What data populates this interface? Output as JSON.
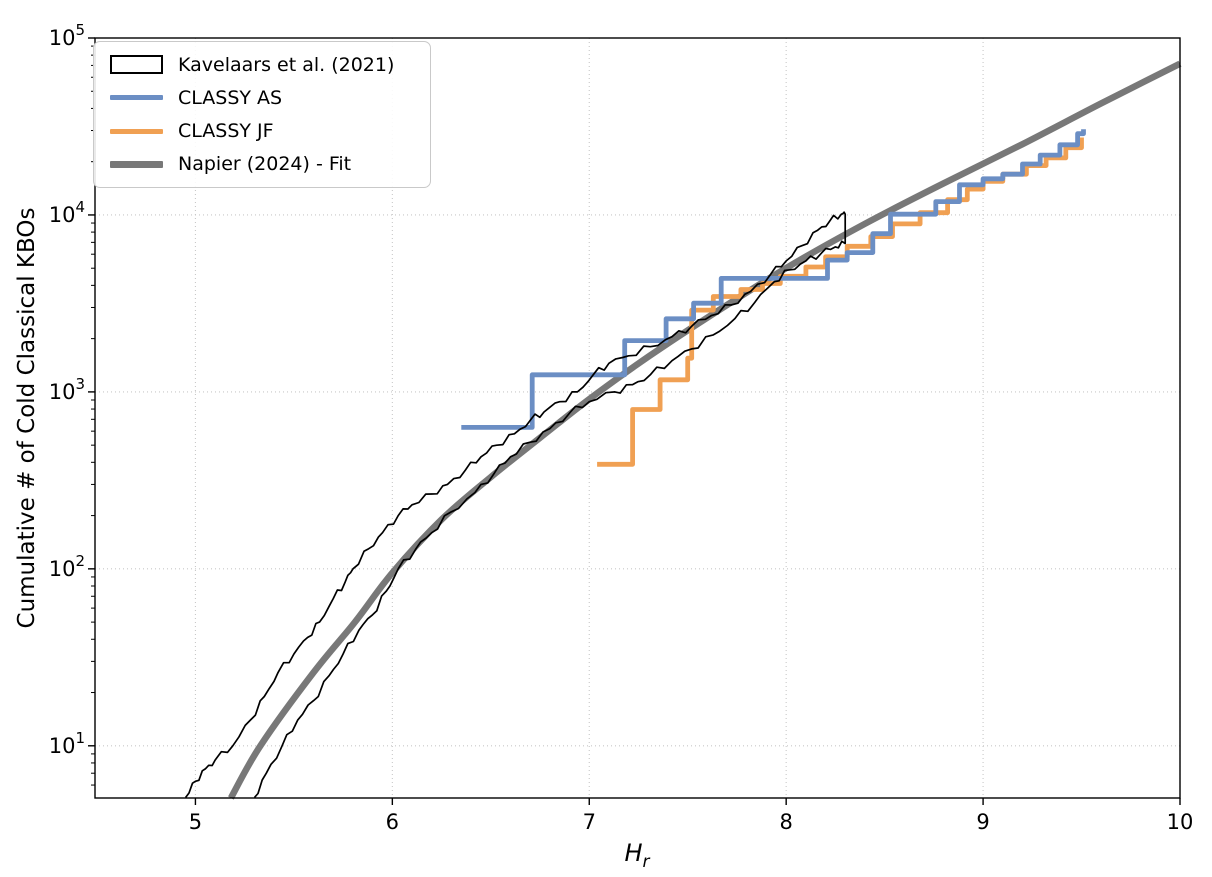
{
  "figure": {
    "background": "#ffffff",
    "title": ""
  },
  "axes": {
    "xlabel_main": "H",
    "xlabel_sub": "r",
    "ylabel": "Cumulative # of Cold Classical KBOs",
    "x_ticks": [
      5,
      6,
      7,
      8,
      9,
      10
    ],
    "y_tick_exponents": [
      1,
      2,
      3,
      4,
      5
    ],
    "y_tick_base": "10",
    "grid": true,
    "grid_color": "#c8c8c8",
    "spine_color": "#000000",
    "xlim": [
      4.49,
      10.0
    ],
    "ylim_log10": [
      0.705,
      5.0
    ]
  },
  "legend": {
    "position": "upper left",
    "items": [
      {
        "id": "kavelaars",
        "label": "Kavelaars et al. (2021)",
        "swatch": "rect-outline",
        "color": "#000000"
      },
      {
        "id": "classy-as",
        "label": "CLASSY AS",
        "swatch": "line",
        "color": "#6b8ec4"
      },
      {
        "id": "classy-jf",
        "label": "CLASSY JF",
        "swatch": "line",
        "color": "#f0a053"
      },
      {
        "id": "napier-fit",
        "label": "Napier (2024) - Fit",
        "swatch": "line-thick",
        "color": "#787878"
      }
    ]
  },
  "chart_data": {
    "type": "line",
    "title": "",
    "xlabel": "H_r",
    "ylabel": "Cumulative # of Cold Classical KBOs",
    "x_range": [
      4.49,
      10.0
    ],
    "y_range": [
      5,
      100000
    ],
    "y_scale": "log",
    "grid": true,
    "legend_position": "upper left",
    "series": [
      {
        "name": "Kavelaars et al. (2021)",
        "style": "envelope-outline",
        "color": "#000000",
        "line_width": 1.7,
        "upper": [
          [
            4.95,
            5.1
          ],
          [
            5.0,
            6.3
          ],
          [
            5.05,
            7.4
          ],
          [
            5.1,
            8.3
          ],
          [
            5.19,
            10
          ],
          [
            5.28,
            14
          ],
          [
            5.35,
            19
          ],
          [
            5.42,
            26
          ],
          [
            5.5,
            33
          ],
          [
            5.57,
            41
          ],
          [
            5.63,
            50
          ],
          [
            5.7,
            68
          ],
          [
            5.76,
            84
          ],
          [
            5.8,
            100
          ],
          [
            5.88,
            130
          ],
          [
            5.95,
            160
          ],
          [
            6.03,
            200
          ],
          [
            6.1,
            230
          ],
          [
            6.2,
            265
          ],
          [
            6.28,
            300
          ],
          [
            6.37,
            360
          ],
          [
            6.45,
            430
          ],
          [
            6.53,
            500
          ],
          [
            6.62,
            580
          ],
          [
            6.7,
            690
          ],
          [
            6.77,
            770
          ],
          [
            6.85,
            880
          ],
          [
            6.94,
            1000
          ],
          [
            7.02,
            1250
          ],
          [
            7.1,
            1450
          ],
          [
            7.2,
            1600
          ],
          [
            7.31,
            1800
          ],
          [
            7.42,
            2050
          ],
          [
            7.52,
            2350
          ],
          [
            7.62,
            2700
          ],
          [
            7.72,
            3100
          ],
          [
            7.82,
            3700
          ],
          [
            7.92,
            4600
          ],
          [
            8.0,
            5500
          ],
          [
            8.08,
            6700
          ],
          [
            8.16,
            8200
          ],
          [
            8.22,
            9200
          ],
          [
            8.28,
            10100
          ],
          [
            8.3,
            10100
          ]
        ],
        "lower": [
          [
            5.3,
            5.1
          ],
          [
            5.36,
            7
          ],
          [
            5.44,
            10
          ],
          [
            5.52,
            14
          ],
          [
            5.6,
            18
          ],
          [
            5.68,
            25
          ],
          [
            5.75,
            33
          ],
          [
            5.83,
            45
          ],
          [
            5.9,
            55
          ],
          [
            5.97,
            75
          ],
          [
            6.03,
            100
          ],
          [
            6.12,
            130
          ],
          [
            6.2,
            160
          ],
          [
            6.3,
            210
          ],
          [
            6.42,
            270
          ],
          [
            6.52,
            350
          ],
          [
            6.6,
            430
          ],
          [
            6.7,
            520
          ],
          [
            6.8,
            620
          ],
          [
            6.9,
            760
          ],
          [
            7.0,
            880
          ],
          [
            7.13,
            1000
          ],
          [
            7.22,
            1100
          ],
          [
            7.31,
            1250
          ],
          [
            7.42,
            1500
          ],
          [
            7.52,
            1750
          ],
          [
            7.63,
            2100
          ],
          [
            7.74,
            2600
          ],
          [
            7.84,
            3200
          ],
          [
            7.94,
            4200
          ],
          [
            8.02,
            4900
          ],
          [
            8.1,
            5500
          ],
          [
            8.18,
            6100
          ],
          [
            8.25,
            6600
          ],
          [
            8.3,
            6900
          ]
        ]
      },
      {
        "name": "CLASSY AS",
        "style": "step",
        "color": "#6b8ec4",
        "line_width": 4.8,
        "points": [
          [
            6.35,
            630
          ],
          [
            6.71,
            630
          ],
          [
            6.71,
            1250
          ],
          [
            7.18,
            1250
          ],
          [
            7.18,
            1950
          ],
          [
            7.39,
            1950
          ],
          [
            7.39,
            2590
          ],
          [
            7.53,
            2590
          ],
          [
            7.53,
            3170
          ],
          [
            7.67,
            3170
          ],
          [
            7.67,
            4380
          ],
          [
            8.21,
            4380
          ],
          [
            8.21,
            5560
          ],
          [
            8.31,
            5560
          ],
          [
            8.31,
            6130
          ],
          [
            8.44,
            6130
          ],
          [
            8.44,
            7830
          ],
          [
            8.53,
            7830
          ],
          [
            8.53,
            10100
          ],
          [
            8.76,
            10100
          ],
          [
            8.76,
            11900
          ],
          [
            8.88,
            11900
          ],
          [
            8.88,
            14800
          ],
          [
            9.0,
            14800
          ],
          [
            9.0,
            16000
          ],
          [
            9.1,
            16000
          ],
          [
            9.1,
            17000
          ],
          [
            9.2,
            17000
          ],
          [
            9.2,
            19400
          ],
          [
            9.29,
            19400
          ],
          [
            9.29,
            21800
          ],
          [
            9.39,
            21800
          ],
          [
            9.39,
            24900
          ],
          [
            9.48,
            24900
          ],
          [
            9.48,
            28800
          ],
          [
            9.51,
            28800
          ],
          [
            9.51,
            30500
          ]
        ]
      },
      {
        "name": "CLASSY JF",
        "style": "step",
        "color": "#f0a053",
        "line_width": 4.8,
        "points": [
          [
            7.04,
            390
          ],
          [
            7.22,
            390
          ],
          [
            7.22,
            795
          ],
          [
            7.36,
            795
          ],
          [
            7.36,
            1170
          ],
          [
            7.5,
            1170
          ],
          [
            7.5,
            1550
          ],
          [
            7.52,
            1550
          ],
          [
            7.52,
            2900
          ],
          [
            7.63,
            2900
          ],
          [
            7.63,
            3460
          ],
          [
            7.77,
            3460
          ],
          [
            7.77,
            3790
          ],
          [
            7.88,
            3790
          ],
          [
            7.88,
            4100
          ],
          [
            7.97,
            4100
          ],
          [
            7.97,
            4500
          ],
          [
            8.1,
            4500
          ],
          [
            8.1,
            5080
          ],
          [
            8.2,
            5080
          ],
          [
            8.2,
            5800
          ],
          [
            8.31,
            5800
          ],
          [
            8.31,
            6650
          ],
          [
            8.43,
            6650
          ],
          [
            8.43,
            7540
          ],
          [
            8.54,
            7540
          ],
          [
            8.54,
            8900
          ],
          [
            8.68,
            8900
          ],
          [
            8.68,
            10300
          ],
          [
            8.82,
            10300
          ],
          [
            8.82,
            12200
          ],
          [
            8.92,
            12200
          ],
          [
            8.92,
            14000
          ],
          [
            9.0,
            14000
          ],
          [
            9.0,
            15500
          ],
          [
            9.1,
            15500
          ],
          [
            9.1,
            17000
          ],
          [
            9.22,
            17000
          ],
          [
            9.22,
            19000
          ],
          [
            9.32,
            19000
          ],
          [
            9.32,
            21000
          ],
          [
            9.42,
            21000
          ],
          [
            9.42,
            24000
          ],
          [
            9.5,
            24000
          ],
          [
            9.5,
            27400
          ]
        ]
      },
      {
        "name": "Napier (2024) - Fit",
        "style": "smooth",
        "color": "#787878",
        "line_width": 6.5,
        "points": [
          [
            5.18,
            5.07
          ],
          [
            5.33,
            10
          ],
          [
            5.6,
            26
          ],
          [
            5.81,
            50
          ],
          [
            6.0,
            95
          ],
          [
            6.25,
            190
          ],
          [
            6.5,
            330
          ],
          [
            6.75,
            550
          ],
          [
            7.0,
            910
          ],
          [
            7.3,
            1580
          ],
          [
            7.6,
            2630
          ],
          [
            8.0,
            5010
          ],
          [
            8.4,
            8910
          ],
          [
            8.8,
            15100
          ],
          [
            9.2,
            25100
          ],
          [
            9.6,
            42700
          ],
          [
            10.0,
            71600
          ]
        ]
      }
    ]
  }
}
